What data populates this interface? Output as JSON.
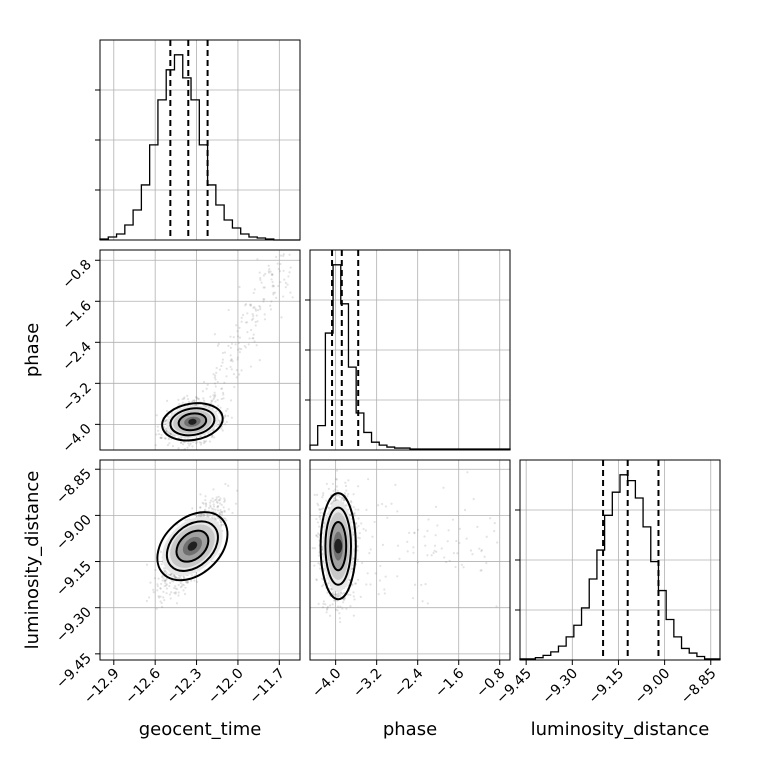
{
  "chart_data": {
    "type": "corner",
    "parameters": [
      "geocent_time",
      "phase",
      "luminosity_distance"
    ],
    "axes": {
      "geocent_time": {
        "range": [
          -13.0,
          -11.55
        ],
        "ticks": [
          -12.9,
          -12.6,
          -12.3,
          -12.0,
          -11.7
        ],
        "tick_labels": [
          "−12.9",
          "−12.6",
          "−12.3",
          "−12.0",
          "−11.7"
        ]
      },
      "phase": {
        "range": [
          -4.5,
          -0.6
        ],
        "ticks": [
          -4.0,
          -3.2,
          -2.4,
          -1.6,
          -0.8
        ],
        "tick_labels": [
          "−4.0",
          "−3.2",
          "−2.4",
          "−1.6",
          "−0.8"
        ]
      },
      "luminosity_distance": {
        "range": [
          -9.47,
          -8.82
        ],
        "ticks": [
          -9.45,
          -9.3,
          -9.15,
          -9.0,
          -8.85
        ],
        "tick_labels": [
          "−9.45",
          "−9.30",
          "−9.15",
          "−9.00",
          "−8.85"
        ]
      }
    },
    "marginals": [
      {
        "parameter": "geocent_time",
        "bin_edges": [
          -13.0,
          -12.94,
          -12.88,
          -12.82,
          -12.76,
          -12.7,
          -12.64,
          -12.58,
          -12.52,
          -12.46,
          -12.4,
          -12.34,
          -12.28,
          -12.22,
          -12.16,
          -12.1,
          -12.04,
          -11.98,
          -11.92,
          -11.86,
          -11.8,
          -11.74,
          -11.68,
          -11.62,
          -11.55
        ],
        "counts": [
          1,
          3,
          6,
          15,
          30,
          55,
          95,
          140,
          170,
          185,
          162,
          140,
          95,
          55,
          35,
          20,
          12,
          6,
          3,
          2,
          1,
          0,
          0,
          0
        ],
        "quantiles": [
          -12.49,
          -12.36,
          -12.22
        ]
      },
      {
        "parameter": "phase",
        "bin_edges": [
          -4.5,
          -4.35,
          -4.2,
          -4.05,
          -3.9,
          -3.75,
          -3.6,
          -3.45,
          -3.3,
          -3.15,
          -3.0,
          -2.85,
          -2.7,
          -2.55,
          -2.4,
          -2.25,
          -2.1,
          -1.95,
          -1.8,
          -1.65,
          -1.5,
          -1.35,
          -1.2,
          -1.05,
          -0.9,
          -0.75,
          -0.6
        ],
        "counts": [
          5,
          25,
          120,
          190,
          150,
          85,
          38,
          18,
          8,
          5,
          3,
          2,
          2,
          1,
          1,
          1,
          1,
          1,
          1,
          1,
          1,
          1,
          1,
          1,
          1,
          1
        ],
        "quantiles": [
          -4.07,
          -3.88,
          -3.56
        ]
      },
      {
        "parameter": "luminosity_distance",
        "bin_edges": [
          -9.47,
          -9.445,
          -9.42,
          -9.395,
          -9.37,
          -9.345,
          -9.32,
          -9.295,
          -9.27,
          -9.245,
          -9.22,
          -9.195,
          -9.17,
          -9.145,
          -9.12,
          -9.095,
          -9.07,
          -9.045,
          -9.02,
          -8.995,
          -8.97,
          -8.945,
          -8.92,
          -8.895,
          -8.87,
          -8.845,
          -8.82
        ],
        "counts": [
          1,
          1,
          2,
          4,
          7,
          12,
          20,
          30,
          45,
          70,
          95,
          125,
          145,
          160,
          155,
          140,
          115,
          85,
          60,
          35,
          20,
          10,
          6,
          3,
          1,
          1
        ],
        "quantiles": [
          -9.2,
          -9.12,
          -9.02
        ]
      }
    ],
    "joint": [
      {
        "x": "geocent_time",
        "y": "phase",
        "center": [
          -12.33,
          -3.95
        ],
        "sigma": [
          0.09,
          0.18
        ],
        "rho": 0.25
      },
      {
        "x": "geocent_time",
        "y": "luminosity_distance",
        "center": [
          -12.33,
          -9.1
        ],
        "sigma": [
          0.1,
          0.065
        ],
        "rho": 0.75
      },
      {
        "x": "phase",
        "y": "luminosity_distance",
        "center": [
          -3.95,
          -9.1
        ],
        "sigma": [
          0.16,
          0.08
        ],
        "rho": -0.05
      }
    ],
    "contour_levels_sigma": [
      1.0,
      1.6,
      2.2
    ],
    "colors": {
      "line": "#000000",
      "grid": "#b0b0b0",
      "samples": "#808080"
    },
    "grid": true
  }
}
